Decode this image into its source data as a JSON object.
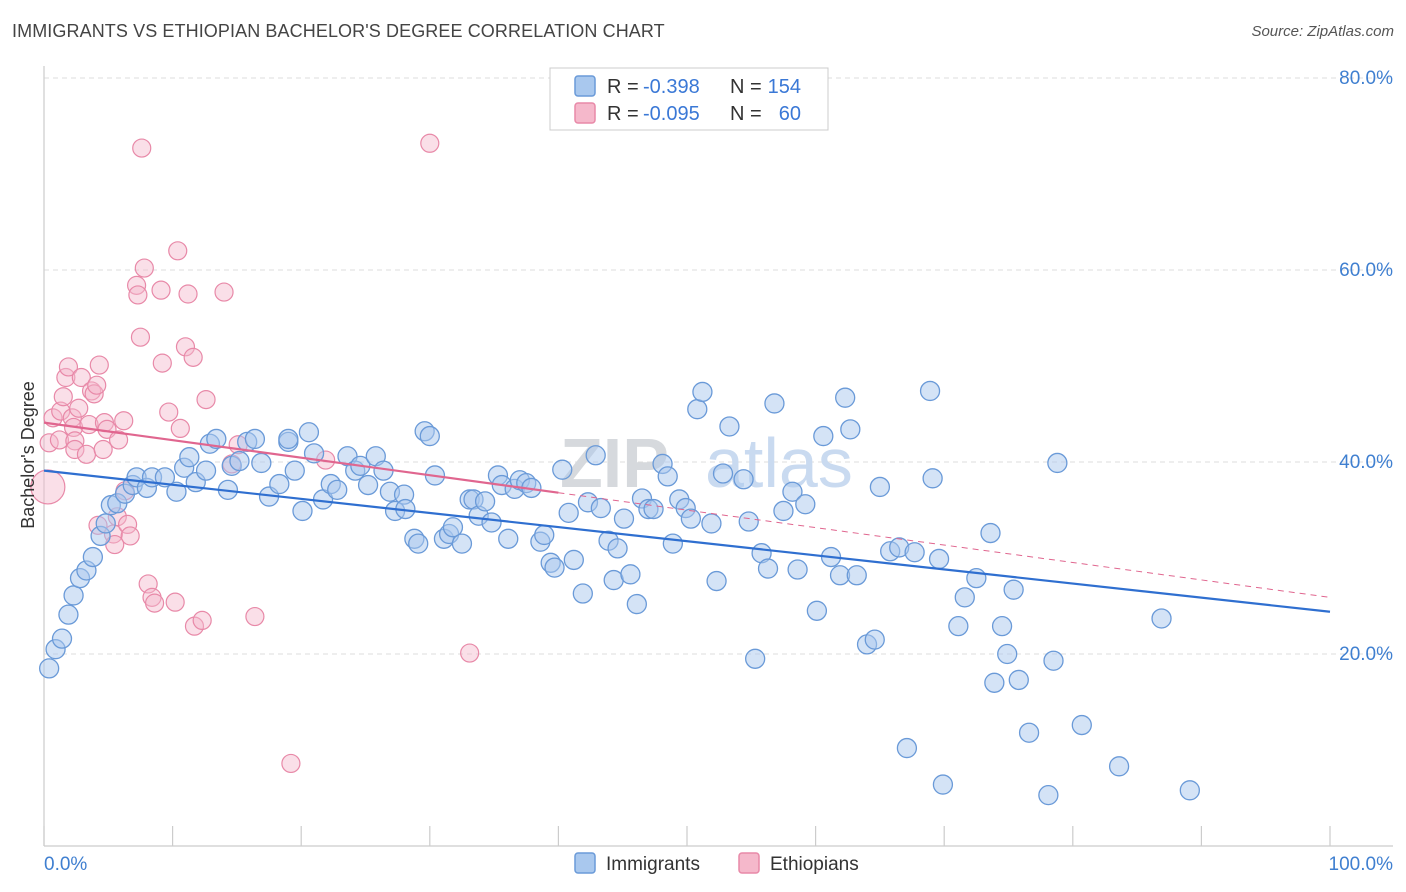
{
  "title": "IMMIGRANTS VS ETHIOPIAN BACHELOR'S DEGREE CORRELATION CHART",
  "source": "Source: ZipAtlas.com",
  "watermark": {
    "zip": "ZIP",
    "atlas": "atlas"
  },
  "colors": {
    "blue_fill": "#a9c8ee",
    "blue_stroke": "#6a9ad8",
    "blue_line": "#2f6fd0",
    "pink_fill": "#f5b8cb",
    "pink_stroke": "#e889a8",
    "pink_line": "#e0668f",
    "axis_text": "#3f7fd0",
    "grid": "#dddddd"
  },
  "legend": {
    "rows": [
      {
        "r_label": "R =",
        "r_value": "-0.398",
        "n_label": "N =",
        "n_value": "154"
      },
      {
        "r_label": "R =",
        "r_value": "-0.095",
        "n_label": "N =",
        "n_value": "60"
      }
    ]
  },
  "bottom_legend": [
    "Immigrants",
    "Ethiopians"
  ],
  "chart_data": {
    "type": "scatter",
    "title": "IMMIGRANTS VS ETHIOPIAN BACHELOR'S DEGREE CORRELATION CHART",
    "xlabel": "",
    "ylabel": "Bachelor's Degree",
    "xlim": [
      0,
      100
    ],
    "ylim": [
      0,
      80
    ],
    "x_tick_labels": [
      "0.0%",
      "100.0%"
    ],
    "y_ticks": [
      20,
      40,
      60,
      80
    ],
    "y_tick_labels": [
      "20.0%",
      "40.0%",
      "60.0%",
      "80.0%"
    ],
    "grid": true,
    "series": [
      {
        "name": "Immigrants",
        "R": -0.398,
        "N": 154,
        "trend": {
          "x": [
            0,
            100
          ],
          "y": [
            39.1,
            24.4
          ],
          "style": "solid"
        },
        "points": [
          [
            0.4,
            18.5
          ],
          [
            0.9,
            20.5
          ],
          [
            1.4,
            21.6
          ],
          [
            1.9,
            24.1
          ],
          [
            2.3,
            26.1
          ],
          [
            2.8,
            27.9
          ],
          [
            3.3,
            28.7
          ],
          [
            3.8,
            30.1
          ],
          [
            4.4,
            32.3
          ],
          [
            4.8,
            33.6
          ],
          [
            5.2,
            35.5
          ],
          [
            5.7,
            35.7
          ],
          [
            6.3,
            36.7
          ],
          [
            6.9,
            37.6
          ],
          [
            7.2,
            38.4
          ],
          [
            8.0,
            37.3
          ],
          [
            8.4,
            38.4
          ],
          [
            9.4,
            38.4
          ],
          [
            10.3,
            36.9
          ],
          [
            10.9,
            39.4
          ],
          [
            11.3,
            40.5
          ],
          [
            11.8,
            37.9
          ],
          [
            12.6,
            39.1
          ],
          [
            12.9,
            41.9
          ],
          [
            13.4,
            42.4
          ],
          [
            14.3,
            37.1
          ],
          [
            14.6,
            39.6
          ],
          [
            15.2,
            40.1
          ],
          [
            15.8,
            42.1
          ],
          [
            16.4,
            42.4
          ],
          [
            16.9,
            39.9
          ],
          [
            17.5,
            36.4
          ],
          [
            18.3,
            37.7
          ],
          [
            19.0,
            42.1
          ],
          [
            19.0,
            42.4
          ],
          [
            19.5,
            39.1
          ],
          [
            20.1,
            34.9
          ],
          [
            20.6,
            43.1
          ],
          [
            21.0,
            40.9
          ],
          [
            21.7,
            36.1
          ],
          [
            22.3,
            37.7
          ],
          [
            22.8,
            37.1
          ],
          [
            23.6,
            40.6
          ],
          [
            24.2,
            39.1
          ],
          [
            24.6,
            39.6
          ],
          [
            25.2,
            37.6
          ],
          [
            25.8,
            40.6
          ],
          [
            26.4,
            39.1
          ],
          [
            26.9,
            36.9
          ],
          [
            27.3,
            34.9
          ],
          [
            28.0,
            36.6
          ],
          [
            28.1,
            35.1
          ],
          [
            28.8,
            32.0
          ],
          [
            29.1,
            31.5
          ],
          [
            29.6,
            43.2
          ],
          [
            30.0,
            42.7
          ],
          [
            30.4,
            38.6
          ],
          [
            31.1,
            32.0
          ],
          [
            31.5,
            32.5
          ],
          [
            31.8,
            33.2
          ],
          [
            32.5,
            31.5
          ],
          [
            33.1,
            36.1
          ],
          [
            33.4,
            36.1
          ],
          [
            33.8,
            34.4
          ],
          [
            34.3,
            35.9
          ],
          [
            34.8,
            33.7
          ],
          [
            35.3,
            38.6
          ],
          [
            35.6,
            37.6
          ],
          [
            36.1,
            32.0
          ],
          [
            36.6,
            37.2
          ],
          [
            37.0,
            38.1
          ],
          [
            37.5,
            37.8
          ],
          [
            37.9,
            37.3
          ],
          [
            38.6,
            31.7
          ],
          [
            38.9,
            32.4
          ],
          [
            39.4,
            29.5
          ],
          [
            39.7,
            29.0
          ],
          [
            40.3,
            39.2
          ],
          [
            40.8,
            34.7
          ],
          [
            41.2,
            29.8
          ],
          [
            41.9,
            26.3
          ],
          [
            42.3,
            35.8
          ],
          [
            42.9,
            40.7
          ],
          [
            43.3,
            35.2
          ],
          [
            43.9,
            31.8
          ],
          [
            44.3,
            27.7
          ],
          [
            44.6,
            31.0
          ],
          [
            45.1,
            34.1
          ],
          [
            45.6,
            28.3
          ],
          [
            46.1,
            25.2
          ],
          [
            46.5,
            36.2
          ],
          [
            47.0,
            35.1
          ],
          [
            47.4,
            35.1
          ],
          [
            48.1,
            39.8
          ],
          [
            48.5,
            38.5
          ],
          [
            48.9,
            31.5
          ],
          [
            49.4,
            36.1
          ],
          [
            49.9,
            35.2
          ],
          [
            50.3,
            34.1
          ],
          [
            50.8,
            45.5
          ],
          [
            51.2,
            47.3
          ],
          [
            51.9,
            33.6
          ],
          [
            52.3,
            27.6
          ],
          [
            52.8,
            38.8
          ],
          [
            53.3,
            43.7
          ],
          [
            54.4,
            38.2
          ],
          [
            54.8,
            33.8
          ],
          [
            55.3,
            19.5
          ],
          [
            55.8,
            30.5
          ],
          [
            56.3,
            28.9
          ],
          [
            56.8,
            46.1
          ],
          [
            57.5,
            34.9
          ],
          [
            58.2,
            36.9
          ],
          [
            58.6,
            28.8
          ],
          [
            59.2,
            35.6
          ],
          [
            60.1,
            24.5
          ],
          [
            60.6,
            42.7
          ],
          [
            61.2,
            30.1
          ],
          [
            61.9,
            28.2
          ],
          [
            62.3,
            46.7
          ],
          [
            62.7,
            43.4
          ],
          [
            63.2,
            28.2
          ],
          [
            64.0,
            21.0
          ],
          [
            64.6,
            21.5
          ],
          [
            65.0,
            37.4
          ],
          [
            65.8,
            30.7
          ],
          [
            66.5,
            31.1
          ],
          [
            67.1,
            10.2
          ],
          [
            67.7,
            30.6
          ],
          [
            68.9,
            47.4
          ],
          [
            69.1,
            38.3
          ],
          [
            69.6,
            29.9
          ],
          [
            69.9,
            6.4
          ],
          [
            71.1,
            22.9
          ],
          [
            71.6,
            25.9
          ],
          [
            72.5,
            27.9
          ],
          [
            73.6,
            32.6
          ],
          [
            73.9,
            17.0
          ],
          [
            74.5,
            22.9
          ],
          [
            74.9,
            20.0
          ],
          [
            75.4,
            26.7
          ],
          [
            75.8,
            17.3
          ],
          [
            76.6,
            11.8
          ],
          [
            78.1,
            5.3
          ],
          [
            78.5,
            19.3
          ],
          [
            78.8,
            39.9
          ],
          [
            80.7,
            12.6
          ],
          [
            83.6,
            8.3
          ],
          [
            86.9,
            23.7
          ],
          [
            89.1,
            5.8
          ]
        ]
      },
      {
        "name": "Ethiopians",
        "R": -0.095,
        "N": 60,
        "trend_solid": {
          "x": [
            0,
            40
          ],
          "y": [
            44.1,
            36.8
          ]
        },
        "trend_dashed": {
          "x": [
            40,
            100
          ],
          "y": [
            36.8,
            25.9
          ]
        },
        "points": [
          [
            0.3,
            37.4
          ],
          [
            0.4,
            42.0
          ],
          [
            0.7,
            44.6
          ],
          [
            1.2,
            42.3
          ],
          [
            1.3,
            45.3
          ],
          [
            1.5,
            46.8
          ],
          [
            1.7,
            48.8
          ],
          [
            1.9,
            49.9
          ],
          [
            2.2,
            44.6
          ],
          [
            2.3,
            43.6
          ],
          [
            2.4,
            42.2
          ],
          [
            2.4,
            41.3
          ],
          [
            2.7,
            45.6
          ],
          [
            2.9,
            48.8
          ],
          [
            3.3,
            40.8
          ],
          [
            3.5,
            43.9
          ],
          [
            3.7,
            47.4
          ],
          [
            3.9,
            47.1
          ],
          [
            4.1,
            48.0
          ],
          [
            4.2,
            33.4
          ],
          [
            4.3,
            50.1
          ],
          [
            4.6,
            41.3
          ],
          [
            4.7,
            44.1
          ],
          [
            4.9,
            43.4
          ],
          [
            5.4,
            32.5
          ],
          [
            5.5,
            31.4
          ],
          [
            5.7,
            34.3
          ],
          [
            5.8,
            42.3
          ],
          [
            6.2,
            44.3
          ],
          [
            6.3,
            37.0
          ],
          [
            6.5,
            33.5
          ],
          [
            6.7,
            32.3
          ],
          [
            7.2,
            58.4
          ],
          [
            7.3,
            57.4
          ],
          [
            7.5,
            53.0
          ],
          [
            7.6,
            72.7
          ],
          [
            7.8,
            60.2
          ],
          [
            8.1,
            27.3
          ],
          [
            8.4,
            25.9
          ],
          [
            8.6,
            25.3
          ],
          [
            9.1,
            57.9
          ],
          [
            9.2,
            50.3
          ],
          [
            9.7,
            45.2
          ],
          [
            10.2,
            25.4
          ],
          [
            10.4,
            62.0
          ],
          [
            10.6,
            43.5
          ],
          [
            11.0,
            52.0
          ],
          [
            11.2,
            57.5
          ],
          [
            11.6,
            50.9
          ],
          [
            11.7,
            22.9
          ],
          [
            12.3,
            23.5
          ],
          [
            12.6,
            46.5
          ],
          [
            14.0,
            57.7
          ],
          [
            14.6,
            39.8
          ],
          [
            15.1,
            41.8
          ],
          [
            16.4,
            23.9
          ],
          [
            19.2,
            8.6
          ],
          [
            21.9,
            40.2
          ],
          [
            30.0,
            73.2
          ],
          [
            33.1,
            20.1
          ]
        ]
      }
    ]
  }
}
